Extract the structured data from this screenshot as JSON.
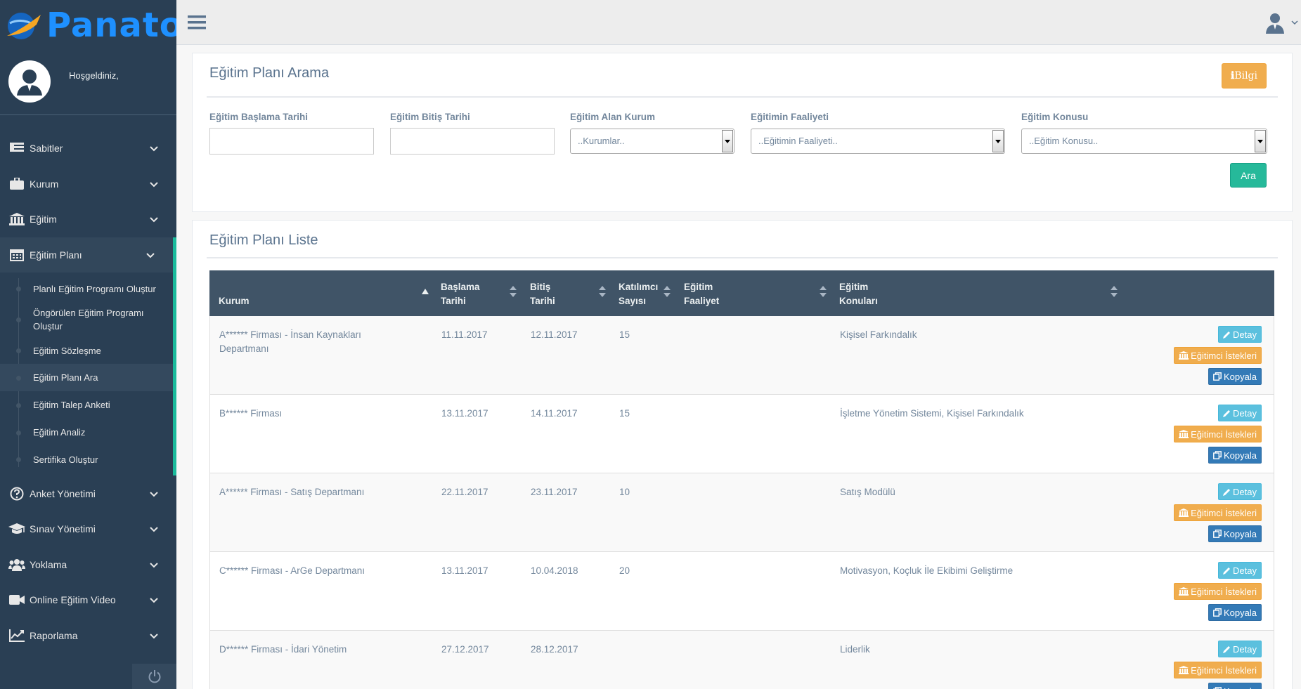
{
  "brand": {
    "name": "Panato"
  },
  "profile": {
    "welcome": "Hoşgeldiniz,"
  },
  "sidebar": {
    "items": [
      {
        "label": "Sabitler",
        "icon": "table-icon"
      },
      {
        "label": "Kurum",
        "icon": "briefcase-icon"
      },
      {
        "label": "Eğitim",
        "icon": "institution-icon"
      },
      {
        "label": "Eğitim Planı",
        "icon": "calendar-icon"
      },
      {
        "label": "Anket Yönetimi",
        "icon": "question-icon"
      },
      {
        "label": "Sınav Yönetimi",
        "icon": "graduation-cap-icon"
      },
      {
        "label": "Yoklama",
        "icon": "users-icon"
      },
      {
        "label": "Online Eğitim Video",
        "icon": "video-icon"
      },
      {
        "label": "Raporlama",
        "icon": "line-chart-icon"
      }
    ],
    "submenu": [
      "Planlı Eğitim Programı Oluştur",
      "Öngörülen Eğitim Programı Oluştur",
      "Eğitim Sözleşme",
      "Eğitim Planı Ara",
      "Eğitim Talep Anketi",
      "Eğitim Analiz",
      "Sertifika Oluştur"
    ]
  },
  "search": {
    "title": "Eğitim Planı Arama",
    "info_button": "Bilgi",
    "labels": {
      "start_date": "Eğitim Başlama Tarihi",
      "end_date": "Eğitim Bitiş Tarihi",
      "institution": "Eğitim Alan Kurum",
      "activity": "Eğitimin Faaliyeti",
      "topic": "Eğitim Konusu"
    },
    "selects": {
      "institution": "..Kurumlar..",
      "activity": "..Eğitimin Faaliyeti..",
      "topic": "..Eğitim Konusu.."
    },
    "search_button": "Ara"
  },
  "list": {
    "title": "Eğitim Planı Liste",
    "headers": {
      "kurum": "Kurum",
      "baslama": [
        "Başlama",
        "Tarihi"
      ],
      "bitis": [
        "Bitiş",
        "Tarihi"
      ],
      "katilimci": [
        "Katılımcı",
        "Sayısı"
      ],
      "faaliyet": [
        "Eğitim",
        "Faaliyet"
      ],
      "konular": [
        "Eğitim",
        "Konuları"
      ]
    },
    "actions": {
      "detail": "Detay",
      "trainer": "Eğitimci İstekleri",
      "copy": "Kopyala"
    },
    "rows": [
      {
        "kurum": "A****** Firması - İnsan Kaynakları Departmanı",
        "baslama": "11.11.2017",
        "bitis": "12.11.2017",
        "katilimci": "15",
        "faaliyet": "",
        "konular": "Kişisel Farkındalık"
      },
      {
        "kurum": "B****** Firması",
        "baslama": "13.11.2017",
        "bitis": "14.11.2017",
        "katilimci": "15",
        "faaliyet": "",
        "konular": "İşletme Yönetim Sistemi, Kişisel Farkındalık"
      },
      {
        "kurum": "A****** Firması - Satış Departmanı",
        "baslama": "22.11.2017",
        "bitis": "23.11.2017",
        "katilimci": "10",
        "faaliyet": "",
        "konular": "Satış Modülü"
      },
      {
        "kurum": "C****** Firması - ArGe Departmanı",
        "baslama": "13.11.2017",
        "bitis": "10.04.2018",
        "katilimci": "20",
        "faaliyet": "",
        "konular": "Motivasyon, Koçluk İle Ekibimi Geliştirme"
      },
      {
        "kurum": "D****** Firması - İdari Yönetim",
        "baslama": "27.12.2017",
        "bitis": "28.12.2017",
        "katilimci": "",
        "faaliyet": "",
        "konular": "Liderlik"
      }
    ]
  },
  "colors": {
    "sidebar": "#2A3F54",
    "accent": "#1ABB9C",
    "warning": "#F0AD4E",
    "success": "#26B99A",
    "info": "#5BC0DE",
    "primary": "#337AB7",
    "thead": "#405467"
  }
}
